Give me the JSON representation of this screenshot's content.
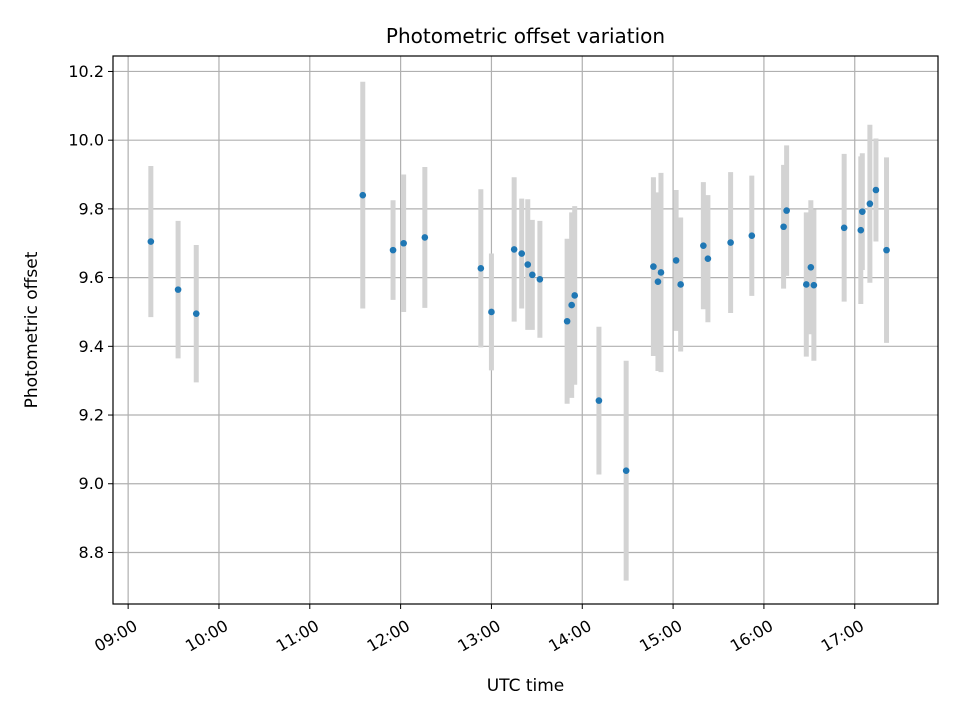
{
  "chart_data": {
    "type": "scatter",
    "title": "Photometric offset variation",
    "xlabel": "UTC time",
    "ylabel": "Photometric offset",
    "x_ticks": [
      "09:00",
      "10:00",
      "11:00",
      "12:00",
      "13:00",
      "14:00",
      "15:00",
      "16:00",
      "17:00"
    ],
    "y_ticks": [
      "8.8",
      "9.0",
      "9.2",
      "9.4",
      "9.6",
      "9.8",
      "10.0",
      "10.2"
    ],
    "xlim": [
      "08:50",
      "17:55"
    ],
    "ylim": [
      8.65,
      10.245
    ],
    "grid": true,
    "errorbar_color": "#d3d3d3",
    "marker_color": "#1f77b4",
    "series": [
      {
        "points": [
          {
            "x": "09:15",
            "y": 9.705,
            "err": 0.22
          },
          {
            "x": "09:33",
            "y": 9.565,
            "err": 0.2
          },
          {
            "x": "09:45",
            "y": 9.495,
            "err": 0.2
          },
          {
            "x": "11:35",
            "y": 9.84,
            "err": 0.33
          },
          {
            "x": "11:55",
            "y": 9.68,
            "err": 0.145
          },
          {
            "x": "12:02",
            "y": 9.7,
            "err": 0.2
          },
          {
            "x": "12:16",
            "y": 9.717,
            "err": 0.205
          },
          {
            "x": "12:53",
            "y": 9.627,
            "err": 0.23
          },
          {
            "x": "13:00",
            "y": 9.5,
            "err": 0.17
          },
          {
            "x": "13:15",
            "y": 9.682,
            "err": 0.21
          },
          {
            "x": "13:20",
            "y": 9.67,
            "err": 0.16
          },
          {
            "x": "13:24",
            "y": 9.638,
            "err": 0.19
          },
          {
            "x": "13:27",
            "y": 9.608,
            "err": 0.16
          },
          {
            "x": "13:32",
            "y": 9.595,
            "err": 0.17
          },
          {
            "x": "13:50",
            "y": 9.473,
            "err": 0.24
          },
          {
            "x": "13:53",
            "y": 9.52,
            "err": 0.27
          },
          {
            "x": "13:55",
            "y": 9.548,
            "err": 0.26
          },
          {
            "x": "14:11",
            "y": 9.242,
            "err": 0.215
          },
          {
            "x": "14:29",
            "y": 9.038,
            "err": 0.32
          },
          {
            "x": "14:47",
            "y": 9.632,
            "err": 0.26
          },
          {
            "x": "14:50",
            "y": 9.588,
            "err": 0.26
          },
          {
            "x": "14:52",
            "y": 9.615,
            "err": 0.29
          },
          {
            "x": "15:02",
            "y": 9.65,
            "err": 0.205
          },
          {
            "x": "15:05",
            "y": 9.58,
            "err": 0.195
          },
          {
            "x": "15:20",
            "y": 9.693,
            "err": 0.185
          },
          {
            "x": "15:23",
            "y": 9.655,
            "err": 0.185
          },
          {
            "x": "15:38",
            "y": 9.702,
            "err": 0.205
          },
          {
            "x": "15:52",
            "y": 9.722,
            "err": 0.175
          },
          {
            "x": "16:13",
            "y": 9.748,
            "err": 0.18
          },
          {
            "x": "16:15",
            "y": 9.795,
            "err": 0.19
          },
          {
            "x": "16:28",
            "y": 9.58,
            "err": 0.21
          },
          {
            "x": "16:31",
            "y": 9.63,
            "err": 0.195
          },
          {
            "x": "16:33",
            "y": 9.578,
            "err": 0.22
          },
          {
            "x": "16:53",
            "y": 9.745,
            "err": 0.215
          },
          {
            "x": "17:04",
            "y": 9.738,
            "err": 0.215
          },
          {
            "x": "17:05",
            "y": 9.792,
            "err": 0.17
          },
          {
            "x": "17:10",
            "y": 9.815,
            "err": 0.23
          },
          {
            "x": "17:14",
            "y": 9.855,
            "err": 0.15
          },
          {
            "x": "17:21",
            "y": 9.68,
            "err": 0.27
          }
        ]
      }
    ]
  }
}
